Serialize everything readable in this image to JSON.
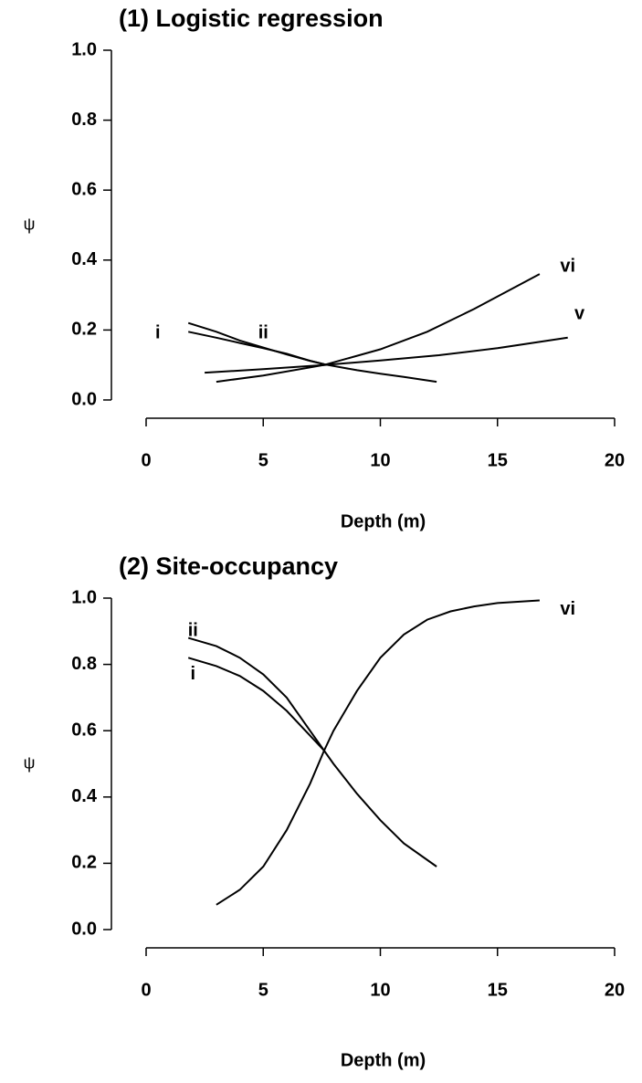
{
  "chart_data": [
    {
      "type": "line",
      "title": "(1) Logistic regression",
      "xlabel": "Depth (m)",
      "ylabel": "ψ",
      "xlim": [
        0,
        20
      ],
      "xticks": [
        0,
        5,
        10,
        15,
        20
      ],
      "ylim": [
        0,
        1
      ],
      "yticks": [
        {
          "value": 0,
          "label": "0.0"
        },
        0.2,
        0.4,
        0.6,
        0.8,
        {
          "value": 1,
          "label": "1.0"
        }
      ],
      "series": [
        {
          "name": "i",
          "color": "#000000",
          "x": [
            1.8,
            3,
            4,
            5,
            6,
            7,
            7.6
          ],
          "values": [
            0.195,
            0.178,
            0.163,
            0.148,
            0.132,
            0.112,
            0.102
          ]
        },
        {
          "name": "ii",
          "color": "#000000",
          "x": [
            1.8,
            3,
            4,
            5,
            6,
            7,
            7.6,
            8,
            9,
            10,
            11,
            12.4
          ],
          "values": [
            0.22,
            0.195,
            0.17,
            0.15,
            0.13,
            0.112,
            0.102,
            0.097,
            0.085,
            0.075,
            0.066,
            0.052
          ]
        },
        {
          "name": "v",
          "color": "#000000",
          "x": [
            2.5,
            5,
            7.6,
            10,
            12.5,
            15,
            18
          ],
          "values": [
            0.078,
            0.088,
            0.1,
            0.113,
            0.128,
            0.148,
            0.178
          ]
        },
        {
          "name": "vi",
          "color": "#000000",
          "x": [
            3,
            5,
            7.6,
            10,
            12,
            14,
            16.8
          ],
          "values": [
            0.052,
            0.07,
            0.1,
            0.145,
            0.195,
            0.26,
            0.36
          ]
        }
      ]
    },
    {
      "type": "line",
      "title": "(2) Site-occupancy",
      "xlabel": "Depth (m)",
      "ylabel": "ψ",
      "xlim": [
        0,
        20
      ],
      "xticks": [
        0,
        5,
        10,
        15,
        20
      ],
      "ylim": [
        0,
        1
      ],
      "yticks": [
        {
          "value": 0,
          "label": "0.0"
        },
        0.2,
        0.4,
        0.6,
        0.8,
        {
          "value": 1,
          "label": "1.0"
        }
      ],
      "series": [
        {
          "name": "i",
          "color": "#000000",
          "x": [
            1.8,
            3,
            4,
            5,
            6,
            7,
            7.6
          ],
          "values": [
            0.82,
            0.795,
            0.765,
            0.72,
            0.66,
            0.585,
            0.54
          ]
        },
        {
          "name": "ii",
          "color": "#000000",
          "x": [
            1.8,
            3,
            4,
            5,
            6,
            7,
            7.6,
            8,
            9,
            10,
            11,
            12.4
          ],
          "values": [
            0.88,
            0.855,
            0.82,
            0.77,
            0.7,
            0.6,
            0.54,
            0.5,
            0.41,
            0.33,
            0.26,
            0.19
          ]
        },
        {
          "name": "vi",
          "color": "#000000",
          "x": [
            3,
            4,
            5,
            6,
            7,
            7.6,
            8,
            9,
            10,
            11,
            12,
            13,
            14,
            15,
            16.8
          ],
          "values": [
            0.075,
            0.12,
            0.19,
            0.3,
            0.44,
            0.54,
            0.6,
            0.72,
            0.82,
            0.89,
            0.935,
            0.96,
            0.975,
            0.985,
            0.993
          ]
        }
      ]
    }
  ]
}
